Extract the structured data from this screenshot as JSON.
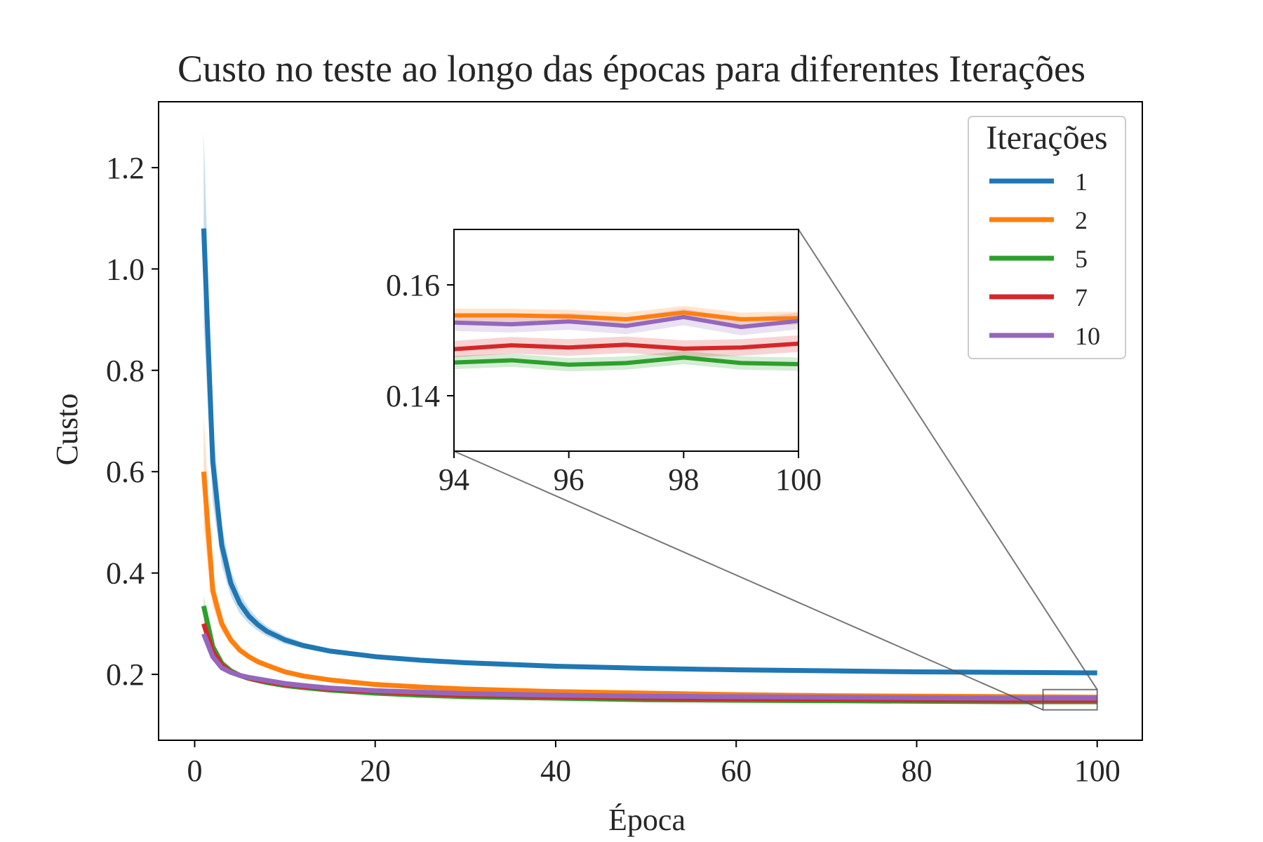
{
  "chart_data": {
    "type": "line",
    "title": "Custo no teste ao longo das épocas para diferentes Iterações",
    "xlabel": "Época",
    "ylabel": "Custo",
    "xlim": [
      -4,
      105
    ],
    "ylim": [
      0.07,
      1.33
    ],
    "xticks": [
      0,
      20,
      40,
      60,
      80,
      100
    ],
    "yticks": [
      0.2,
      0.4,
      0.6,
      0.8,
      1.0,
      1.2
    ],
    "ytick_labels": [
      "0.2",
      "0.4",
      "0.6",
      "0.8",
      "1.0",
      "1.2"
    ],
    "grid": false,
    "legend": {
      "title": "Iterações",
      "position": "top-right"
    },
    "series": [
      {
        "name": "1",
        "color": "#1f77b4",
        "x": [
          1,
          2,
          3,
          4,
          5,
          6,
          7,
          8,
          10,
          12,
          15,
          20,
          25,
          30,
          40,
          50,
          60,
          70,
          80,
          90,
          100
        ],
        "y": [
          1.08,
          0.62,
          0.455,
          0.38,
          0.34,
          0.315,
          0.298,
          0.285,
          0.268,
          0.257,
          0.246,
          0.235,
          0.228,
          0.223,
          0.216,
          0.212,
          0.209,
          0.207,
          0.205,
          0.204,
          0.203
        ],
        "band": [
          0.19,
          0.08,
          0.04,
          0.025,
          0.02,
          0.015,
          0.012,
          0.01,
          0.008,
          0.006,
          0.005,
          0.004,
          0.004,
          0.003,
          0.003,
          0.003,
          0.003,
          0.003,
          0.003,
          0.003,
          0.003
        ]
      },
      {
        "name": "2",
        "color": "#ff7f0e",
        "x": [
          1,
          2,
          3,
          4,
          5,
          6,
          7,
          8,
          10,
          12,
          15,
          20,
          25,
          30,
          40,
          50,
          60,
          70,
          80,
          90,
          100
        ],
        "y": [
          0.6,
          0.365,
          0.3,
          0.268,
          0.248,
          0.235,
          0.225,
          0.218,
          0.205,
          0.197,
          0.189,
          0.18,
          0.175,
          0.171,
          0.166,
          0.163,
          0.16,
          0.158,
          0.157,
          0.156,
          0.155
        ],
        "band": [
          0.11,
          0.03,
          0.015,
          0.008,
          0.006,
          0.005,
          0.004,
          0.004,
          0.003,
          0.003,
          0.003,
          0.003,
          0.003,
          0.003,
          0.003,
          0.003,
          0.003,
          0.003,
          0.003,
          0.003,
          0.003
        ]
      },
      {
        "name": "5",
        "color": "#2ca02c",
        "x": [
          1,
          2,
          3,
          4,
          5,
          6,
          7,
          8,
          10,
          12,
          15,
          20,
          25,
          30,
          40,
          50,
          60,
          70,
          80,
          90,
          100
        ],
        "y": [
          0.335,
          0.255,
          0.222,
          0.207,
          0.198,
          0.192,
          0.188,
          0.184,
          0.178,
          0.174,
          0.169,
          0.163,
          0.159,
          0.156,
          0.153,
          0.15,
          0.149,
          0.148,
          0.147,
          0.146,
          0.146
        ],
        "band": [
          0.02,
          0.008,
          0.005,
          0.004,
          0.004,
          0.003,
          0.003,
          0.003,
          0.003,
          0.003,
          0.003,
          0.003,
          0.003,
          0.003,
          0.003,
          0.003,
          0.003,
          0.003,
          0.003,
          0.003,
          0.003
        ]
      },
      {
        "name": "7",
        "color": "#d62728",
        "x": [
          1,
          2,
          3,
          4,
          5,
          6,
          7,
          8,
          10,
          12,
          15,
          20,
          25,
          30,
          40,
          50,
          60,
          70,
          80,
          90,
          100
        ],
        "y": [
          0.3,
          0.245,
          0.218,
          0.205,
          0.198,
          0.193,
          0.189,
          0.186,
          0.18,
          0.176,
          0.171,
          0.166,
          0.162,
          0.159,
          0.156,
          0.153,
          0.152,
          0.151,
          0.15,
          0.149,
          0.149
        ],
        "band": [
          0.015,
          0.007,
          0.005,
          0.004,
          0.004,
          0.003,
          0.003,
          0.003,
          0.003,
          0.003,
          0.003,
          0.003,
          0.003,
          0.003,
          0.003,
          0.003,
          0.003,
          0.003,
          0.003,
          0.003,
          0.003
        ]
      },
      {
        "name": "10",
        "color": "#9467bd",
        "x": [
          1,
          2,
          3,
          4,
          5,
          6,
          7,
          8,
          10,
          12,
          15,
          20,
          25,
          30,
          40,
          50,
          60,
          70,
          80,
          90,
          100
        ],
        "y": [
          0.28,
          0.235,
          0.213,
          0.204,
          0.198,
          0.194,
          0.191,
          0.188,
          0.182,
          0.178,
          0.173,
          0.168,
          0.165,
          0.162,
          0.159,
          0.157,
          0.156,
          0.155,
          0.154,
          0.153,
          0.153
        ],
        "band": [
          0.012,
          0.006,
          0.005,
          0.004,
          0.004,
          0.003,
          0.003,
          0.003,
          0.003,
          0.003,
          0.003,
          0.003,
          0.003,
          0.003,
          0.003,
          0.003,
          0.003,
          0.003,
          0.003,
          0.003,
          0.003
        ]
      }
    ],
    "inset": {
      "xlim": [
        94,
        100
      ],
      "ylim": [
        0.13,
        0.17
      ],
      "xticks": [
        94,
        96,
        98,
        100
      ],
      "yticks": [
        0.14,
        0.16
      ],
      "ytick_labels": [
        "0.14",
        "0.16"
      ],
      "series": [
        {
          "name": "1",
          "color": "#1f77b4",
          "x": [
            94,
            95,
            96,
            97,
            98,
            99,
            100
          ],
          "y": [
            0.203,
            0.203,
            0.203,
            0.203,
            0.203,
            0.203,
            0.203
          ]
        },
        {
          "name": "2",
          "color": "#ff7f0e",
          "x": [
            94,
            95,
            96,
            97,
            98,
            99,
            100
          ],
          "y": [
            0.1545,
            0.1545,
            0.1543,
            0.1538,
            0.155,
            0.1538,
            0.154
          ],
          "band": 0.0012
        },
        {
          "name": "5",
          "color": "#2ca02c",
          "x": [
            94,
            95,
            96,
            97,
            98,
            99,
            100
          ],
          "y": [
            0.146,
            0.1464,
            0.1456,
            0.1459,
            0.1469,
            0.1459,
            0.1457
          ],
          "band": 0.0012
        },
        {
          "name": "7",
          "color": "#d62728",
          "x": [
            94,
            95,
            96,
            97,
            98,
            99,
            100
          ],
          "y": [
            0.1484,
            0.1491,
            0.1487,
            0.1492,
            0.1485,
            0.1487,
            0.1494
          ],
          "band": 0.0015
        },
        {
          "name": "10",
          "color": "#9467bd",
          "x": [
            94,
            95,
            96,
            97,
            98,
            99,
            100
          ],
          "y": [
            0.1532,
            0.1529,
            0.1534,
            0.1526,
            0.1542,
            0.1524,
            0.1535
          ],
          "band": 0.0015
        }
      ]
    }
  }
}
